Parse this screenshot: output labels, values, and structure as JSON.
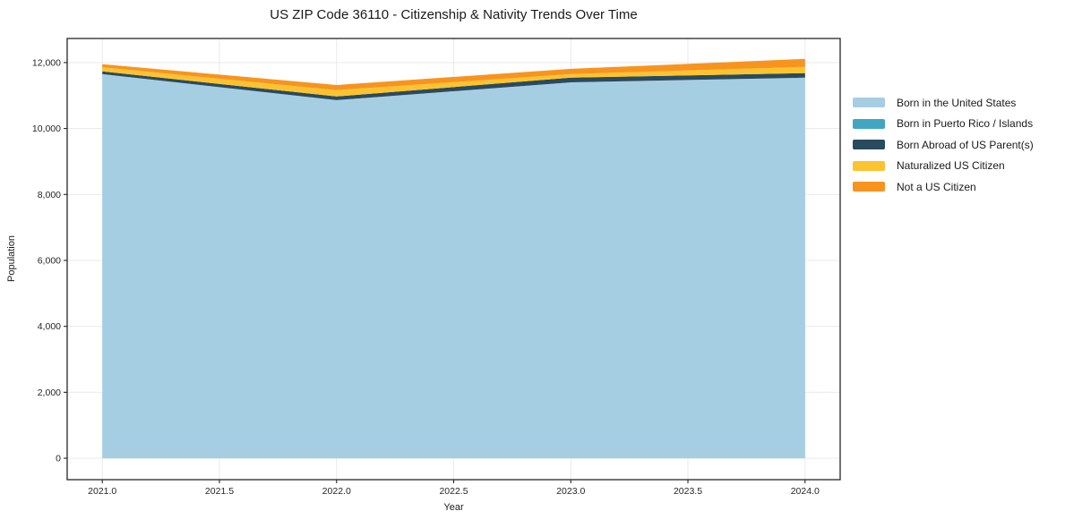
{
  "title": "US ZIP Code 36110 - Citizenship & Nativity Trends Over Time",
  "chart_data": {
    "type": "area",
    "stacked": true,
    "title": "US ZIP Code 36110 - Citizenship & Nativity Trends Over Time",
    "xlabel": "Year",
    "ylabel": "Population",
    "x": [
      2021,
      2022,
      2023,
      2024
    ],
    "series": [
      {
        "name": "Born in the United States",
        "color": "#a6cee3",
        "values": [
          11650,
          10860,
          11400,
          11540
        ]
      },
      {
        "name": "Born in Puerto Rico / Islands",
        "color": "#41a6c1",
        "values": [
          0,
          0,
          0,
          0
        ]
      },
      {
        "name": "Born Abroad of US Parent(s)",
        "color": "#2a4a5e",
        "values": [
          80,
          110,
          140,
          140
        ]
      },
      {
        "name": "Naturalized US Citizen",
        "color": "#fcc331",
        "values": [
          130,
          190,
          110,
          190
        ]
      },
      {
        "name": "Not a US Citizen",
        "color": "#f7941e",
        "values": [
          90,
          160,
          160,
          240
        ]
      }
    ],
    "xlim": [
      2020.85,
      2024.15
    ],
    "ylim": [
      -650,
      12730
    ],
    "xticks": {
      "values": [
        2021.0,
        2021.5,
        2022.0,
        2022.5,
        2023.0,
        2023.5,
        2024.0
      ],
      "labels": [
        "2021.0",
        "2021.5",
        "2022.0",
        "2022.5",
        "2023.0",
        "2023.5",
        "2024.0"
      ]
    },
    "yticks": {
      "values": [
        0,
        2000,
        4000,
        6000,
        8000,
        10000,
        12000
      ],
      "labels": [
        "0",
        "2,000",
        "4,000",
        "6,000",
        "8,000",
        "10,000",
        "12,000"
      ]
    },
    "grid": true,
    "grid_color": "#e7e7e7",
    "axis_color": "#262626",
    "legend_position": "right outside"
  }
}
